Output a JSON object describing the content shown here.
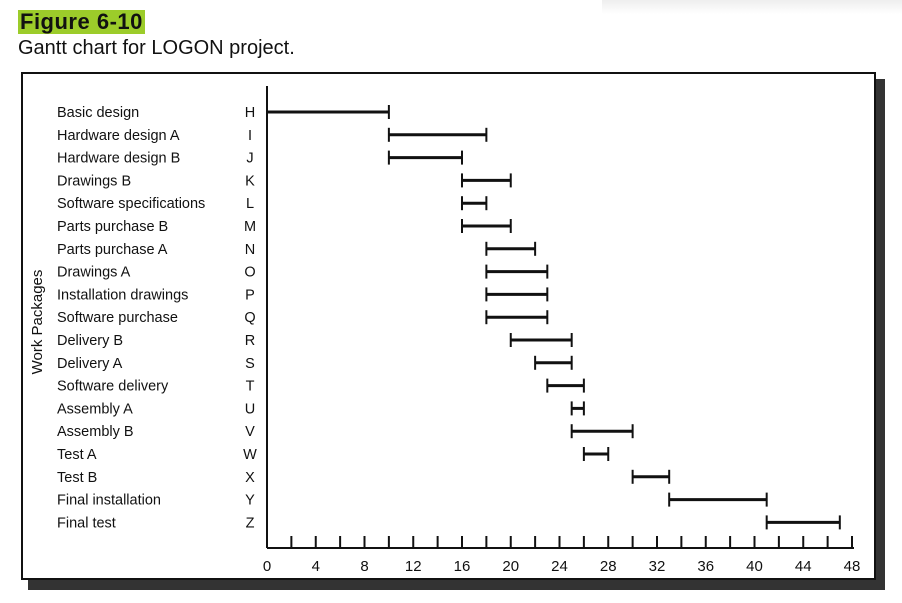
{
  "figure_label": "Figure 6-10",
  "caption": "Gantt chart for LOGON project.",
  "colors": {
    "figure_highlight": "#9ccc2a",
    "bars": "#111111"
  },
  "chart_data": {
    "type": "gantt",
    "title": "",
    "ylabel": "Work Packages",
    "xlabel": "",
    "xlim": [
      0,
      48
    ],
    "x_ticks": [
      0,
      4,
      8,
      12,
      16,
      20,
      24,
      28,
      32,
      36,
      40,
      44,
      48
    ],
    "minor_tick_step": 2,
    "grid": false,
    "tasks": [
      {
        "name": "Basic design",
        "id": "H",
        "start": 0,
        "end": 10
      },
      {
        "name": "Hardware design A",
        "id": "I",
        "start": 10,
        "end": 18
      },
      {
        "name": "Hardware design B",
        "id": "J",
        "start": 10,
        "end": 16
      },
      {
        "name": "Drawings B",
        "id": "K",
        "start": 16,
        "end": 20
      },
      {
        "name": "Software specifications",
        "id": "L",
        "start": 16,
        "end": 18
      },
      {
        "name": "Parts purchase B",
        "id": "M",
        "start": 16,
        "end": 20
      },
      {
        "name": "Parts purchase A",
        "id": "N",
        "start": 18,
        "end": 22
      },
      {
        "name": "Drawings A",
        "id": "O",
        "start": 18,
        "end": 23
      },
      {
        "name": "Installation drawings",
        "id": "P",
        "start": 18,
        "end": 23
      },
      {
        "name": "Software purchase",
        "id": "Q",
        "start": 18,
        "end": 23
      },
      {
        "name": "Delivery B",
        "id": "R",
        "start": 20,
        "end": 25
      },
      {
        "name": "Delivery A",
        "id": "S",
        "start": 22,
        "end": 25
      },
      {
        "name": "Software delivery",
        "id": "T",
        "start": 23,
        "end": 26
      },
      {
        "name": "Assembly A",
        "id": "U",
        "start": 25,
        "end": 26
      },
      {
        "name": "Assembly B",
        "id": "V",
        "start": 25,
        "end": 30
      },
      {
        "name": "Test A",
        "id": "W",
        "start": 26,
        "end": 28
      },
      {
        "name": "Test B",
        "id": "X",
        "start": 30,
        "end": 33
      },
      {
        "name": "Final installation",
        "id": "Y",
        "start": 33,
        "end": 41
      },
      {
        "name": "Final test",
        "id": "Z",
        "start": 41,
        "end": 47
      }
    ]
  }
}
